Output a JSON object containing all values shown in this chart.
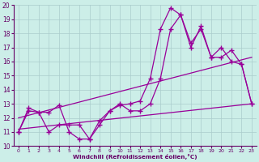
{
  "xlabel": "Windchill (Refroidissement éolien,°C)",
  "background_color": "#cceee8",
  "grid_color": "#aacccc",
  "line_color": "#990099",
  "xlim": [
    -0.5,
    23.5
  ],
  "ylim": [
    10,
    20
  ],
  "yticks": [
    10,
    11,
    12,
    13,
    14,
    15,
    16,
    17,
    18,
    19,
    20
  ],
  "xticks": [
    0,
    1,
    2,
    3,
    4,
    5,
    6,
    7,
    8,
    9,
    10,
    11,
    12,
    13,
    14,
    15,
    16,
    17,
    18,
    19,
    20,
    21,
    22,
    23
  ],
  "series_jagged_x": [
    0,
    1,
    2,
    3,
    4,
    5,
    6,
    7,
    8,
    9,
    10,
    11,
    12,
    13,
    14,
    15,
    16,
    17,
    18,
    19,
    20,
    21,
    22,
    23
  ],
  "series_jagged_y": [
    11.0,
    12.5,
    12.4,
    11.0,
    11.5,
    11.5,
    11.5,
    10.5,
    11.5,
    12.5,
    13.0,
    12.5,
    12.5,
    13.0,
    14.8,
    18.3,
    19.3,
    17.3,
    18.3,
    16.3,
    17.0,
    16.0,
    15.8,
    13.0
  ],
  "series_peaked_x": [
    0,
    1,
    2,
    3,
    4,
    5,
    6,
    7,
    8,
    9,
    10,
    11,
    12,
    13,
    14,
    15,
    16,
    17,
    18,
    19,
    20,
    21,
    22,
    23
  ],
  "series_peaked_y": [
    11.0,
    12.7,
    12.4,
    12.4,
    12.9,
    11.0,
    10.5,
    10.5,
    11.8,
    12.5,
    12.9,
    13.0,
    13.2,
    14.8,
    18.3,
    19.8,
    19.3,
    17.0,
    18.5,
    16.3,
    16.3,
    16.8,
    15.8,
    13.0
  ],
  "trend1_x": [
    0,
    23
  ],
  "trend1_y": [
    11.2,
    13.0
  ],
  "trend2_x": [
    0,
    23
  ],
  "trend2_y": [
    12.0,
    16.3
  ]
}
